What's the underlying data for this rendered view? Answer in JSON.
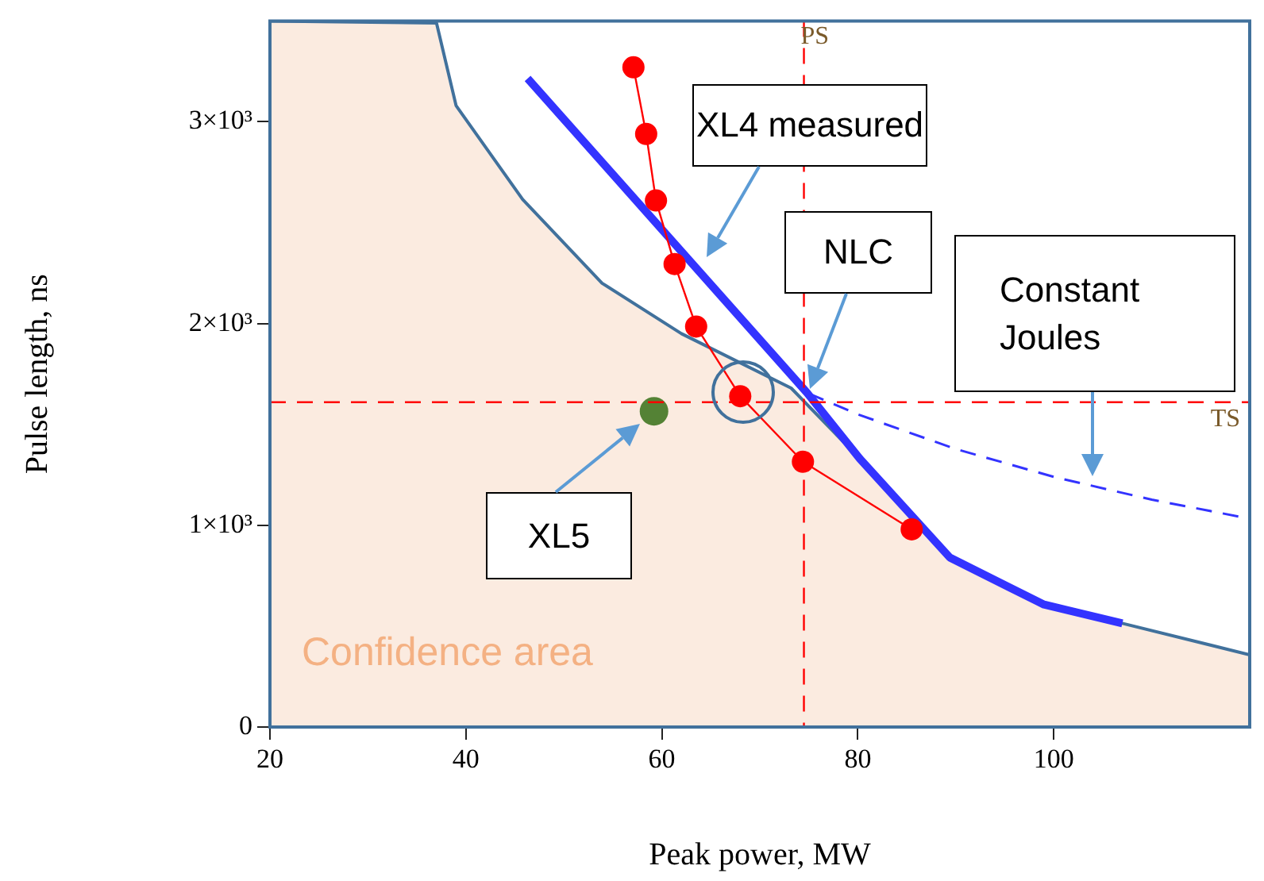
{
  "chart_data": {
    "type": "line",
    "xlabel": "Peak power, MW",
    "ylabel": "Pulse length, ns",
    "xlim": [
      20,
      120
    ],
    "ylim": [
      0,
      3500
    ],
    "xticks": [
      20,
      40,
      60,
      80,
      100
    ],
    "yticks": [
      0,
      {
        "value": 1000,
        "label": "1×10³"
      },
      {
        "value": 2000,
        "label": "2×10³"
      },
      {
        "value": 3000,
        "label": "3×10³"
      }
    ],
    "grid": false,
    "legend": false,
    "series": [
      {
        "type": "area",
        "color": "#fbebe0",
        "marker": "none",
        "x": [
          20,
          37,
          39,
          45.8,
          53.9,
          62,
          73.2,
          80.2,
          89.4,
          99,
          107,
          120
        ],
        "values": [
          3500,
          3490,
          3080,
          2615,
          2200,
          1950,
          1680,
          1330,
          840,
          607,
          514,
          358
        ]
      },
      {
        "type": "line",
        "color": "#3333ff",
        "marker": "none",
        "line_style": "dashed",
        "x": [
          75,
          80,
          90,
          100,
          110,
          120
        ],
        "values": [
          1653,
          1550,
          1378,
          1240,
          1127,
          1033
        ]
      },
      {
        "type": "line",
        "color": "#3333ff",
        "marker": "none",
        "x": [
          46.3,
          74.8,
          80.2,
          89.4,
          99,
          107
        ],
        "values": [
          3215,
          1658,
          1330,
          840,
          607,
          514
        ]
      },
      {
        "type": "line",
        "color": "#ff0000",
        "marker": "circle",
        "x": [
          57.1,
          58.4,
          59.4,
          61.3,
          63.5,
          68,
          74.4,
          85.5
        ],
        "values": [
          3270,
          2940,
          2610,
          2295,
          1985,
          1640,
          1315,
          980
        ]
      },
      {
        "type": "scatter",
        "color": "#548235",
        "marker": "circle",
        "x": [
          59.2
        ],
        "values": [
          1565
        ]
      }
    ],
    "ref_lines": [
      {
        "axis": "x",
        "value": 74.5,
        "label": "PS",
        "color": "#ff0000",
        "line_style": "dashed"
      },
      {
        "axis": "y",
        "value": 1610,
        "label": "TS",
        "color": "#ff0000",
        "line_style": "dashed"
      }
    ],
    "annotations": [
      "XL4 measured",
      "NLC",
      "Constant Joules",
      "XL5",
      "Confidence area"
    ]
  }
}
